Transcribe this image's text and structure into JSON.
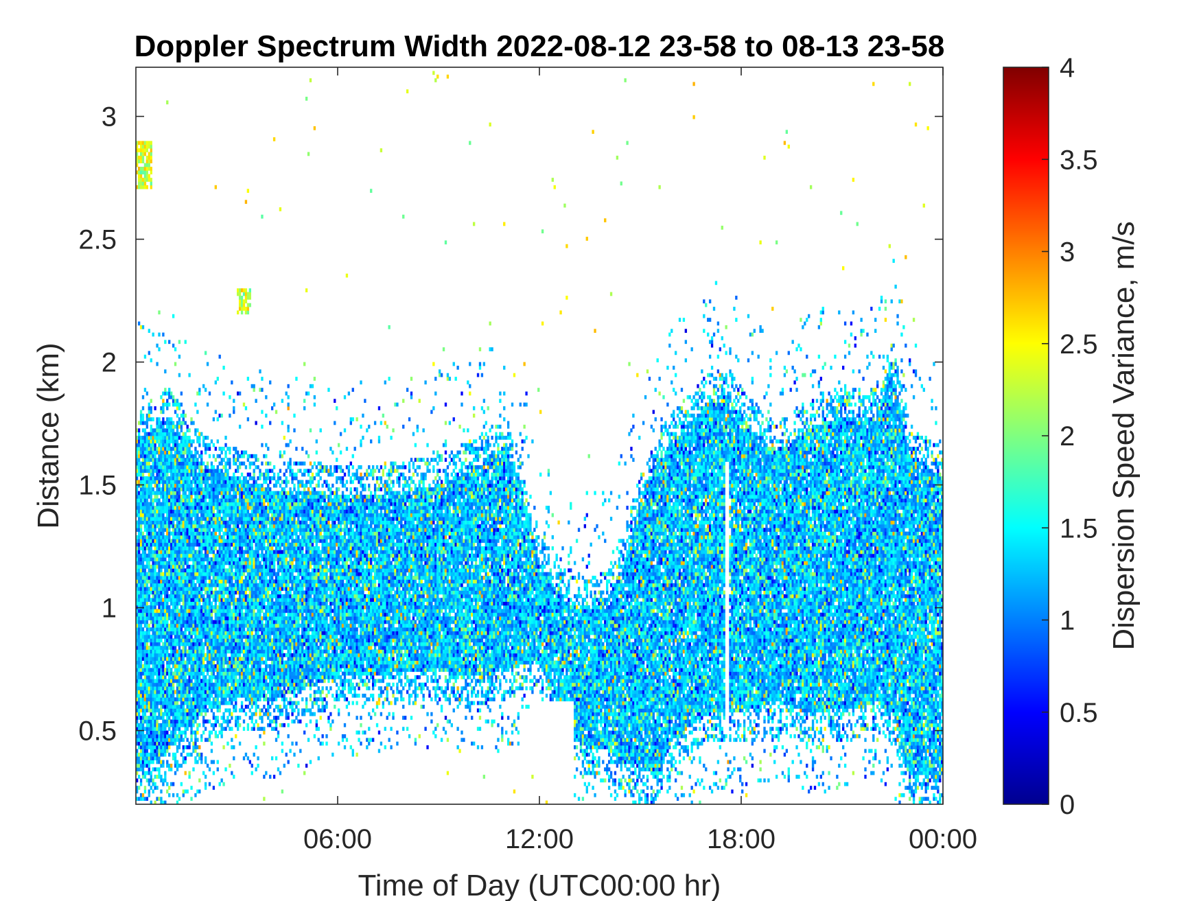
{
  "chart_data": {
    "type": "heatmap",
    "title": "Doppler Spectrum Width 2022-08-12 23-58 to 08-13 23-58",
    "xlabel": "Time of Day (UTC00:00 hr)",
    "ylabel": "Distance (km)",
    "xlim": [
      0,
      24
    ],
    "ylim": [
      0.2,
      3.2
    ],
    "x_ticks": [
      {
        "value": 6,
        "label": "06:00"
      },
      {
        "value": 12,
        "label": "12:00"
      },
      {
        "value": 18,
        "label": "18:00"
      },
      {
        "value": 24,
        "label": "00:00"
      }
    ],
    "y_ticks": [
      {
        "value": 0.5,
        "label": "0.5"
      },
      {
        "value": 1,
        "label": "1"
      },
      {
        "value": 1.5,
        "label": "1.5"
      },
      {
        "value": 2,
        "label": "2"
      },
      {
        "value": 2.5,
        "label": "2.5"
      },
      {
        "value": 3,
        "label": "3"
      }
    ],
    "colorbar": {
      "label": "Dispersion Speed Variance, m/s",
      "colormap": "jet",
      "range": [
        0,
        4
      ],
      "ticks": [
        {
          "value": 0,
          "label": "0"
        },
        {
          "value": 0.5,
          "label": "0.5"
        },
        {
          "value": 1,
          "label": "1"
        },
        {
          "value": 1.5,
          "label": "1.5"
        },
        {
          "value": 2,
          "label": "2"
        },
        {
          "value": 2.5,
          "label": "2.5"
        },
        {
          "value": 3,
          "label": "3"
        },
        {
          "value": 3.5,
          "label": "3.5"
        },
        {
          "value": 4,
          "label": "4"
        }
      ]
    },
    "grid": false,
    "dominant_value_range": [
      0.9,
      1.6
    ],
    "echo_envelope": [
      {
        "time_hr": 0.0,
        "bottom_km": 0.2,
        "top_km": 1.8
      },
      {
        "time_hr": 1.0,
        "bottom_km": 0.3,
        "top_km": 1.9
      },
      {
        "time_hr": 2.0,
        "bottom_km": 0.45,
        "top_km": 1.7
      },
      {
        "time_hr": 3.0,
        "bottom_km": 0.5,
        "top_km": 1.65
      },
      {
        "time_hr": 4.0,
        "bottom_km": 0.5,
        "top_km": 1.6
      },
      {
        "time_hr": 5.0,
        "bottom_km": 0.55,
        "top_km": 1.6
      },
      {
        "time_hr": 6.0,
        "bottom_km": 0.6,
        "top_km": 1.58
      },
      {
        "time_hr": 7.0,
        "bottom_km": 0.6,
        "top_km": 1.58
      },
      {
        "time_hr": 8.0,
        "bottom_km": 0.62,
        "top_km": 1.6
      },
      {
        "time_hr": 9.0,
        "bottom_km": 0.62,
        "top_km": 1.62
      },
      {
        "time_hr": 10.0,
        "bottom_km": 0.6,
        "top_km": 1.68
      },
      {
        "time_hr": 11.0,
        "bottom_km": 0.62,
        "top_km": 1.78
      },
      {
        "time_hr": 11.5,
        "bottom_km": 0.65,
        "top_km": 1.6
      },
      {
        "time_hr": 12.0,
        "bottom_km": 0.65,
        "top_km": 1.3
      },
      {
        "time_hr": 12.5,
        "bottom_km": 0.5,
        "top_km": 1.2
      },
      {
        "time_hr": 13.0,
        "bottom_km": 0.35,
        "top_km": 1.15
      },
      {
        "time_hr": 13.5,
        "bottom_km": 0.3,
        "top_km": 1.12
      },
      {
        "time_hr": 14.0,
        "bottom_km": 0.3,
        "top_km": 1.15
      },
      {
        "time_hr": 14.5,
        "bottom_km": 0.25,
        "top_km": 1.3
      },
      {
        "time_hr": 15.0,
        "bottom_km": 0.22,
        "top_km": 1.55
      },
      {
        "time_hr": 15.5,
        "bottom_km": 0.2,
        "top_km": 1.72
      },
      {
        "time_hr": 16.0,
        "bottom_km": 0.35,
        "top_km": 1.8
      },
      {
        "time_hr": 17.0,
        "bottom_km": 0.45,
        "top_km": 1.95
      },
      {
        "time_hr": 17.5,
        "bottom_km": 0.45,
        "top_km": 2.0
      },
      {
        "time_hr": 18.0,
        "bottom_km": 0.45,
        "top_km": 1.9
      },
      {
        "time_hr": 19.0,
        "bottom_km": 0.5,
        "top_km": 1.75
      },
      {
        "time_hr": 20.0,
        "bottom_km": 0.45,
        "top_km": 1.85
      },
      {
        "time_hr": 21.0,
        "bottom_km": 0.45,
        "top_km": 1.9
      },
      {
        "time_hr": 22.0,
        "bottom_km": 0.5,
        "top_km": 1.9
      },
      {
        "time_hr": 22.5,
        "bottom_km": 0.45,
        "top_km": 2.1
      },
      {
        "time_hr": 23.0,
        "bottom_km": 0.2,
        "top_km": 1.75
      },
      {
        "time_hr": 24.0,
        "bottom_km": 0.2,
        "top_km": 1.65
      }
    ],
    "echo_patches": [
      {
        "time_range_hr": [
          0.0,
          0.5
        ],
        "height_range_km": [
          2.7,
          2.9
        ]
      },
      {
        "time_range_hr": [
          3.0,
          3.4
        ],
        "height_range_km": [
          2.2,
          2.3
        ]
      }
    ],
    "notches": [
      {
        "time_range_hr": [
          11.7,
          13.0
        ],
        "height_range_km": [
          0.2,
          0.62
        ],
        "note_values": []
      },
      {
        "time_range_hr": [
          17.5,
          17.65
        ],
        "height_range_km": [
          0.5,
          1.6
        ]
      }
    ]
  }
}
